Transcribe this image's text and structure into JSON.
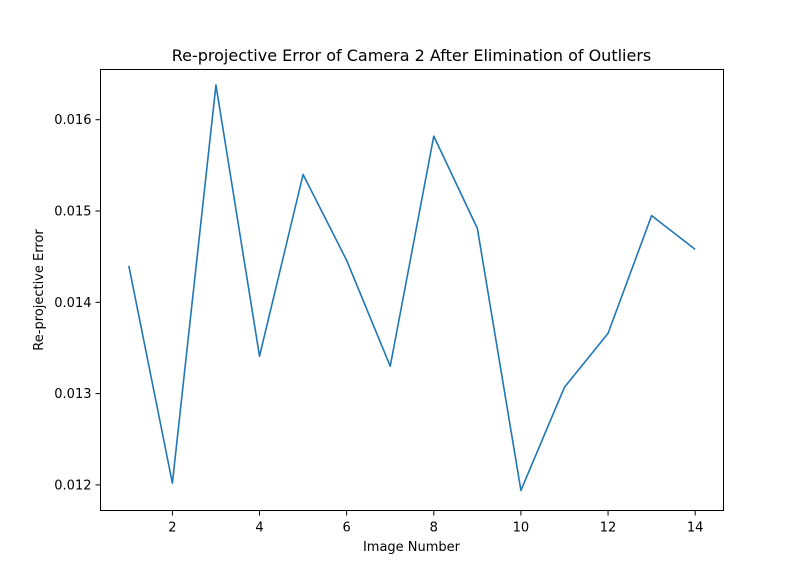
{
  "chart_data": {
    "type": "line",
    "title": "Re-projective Error of Camera 2 After Elimination of Outliers",
    "xlabel": "Image Number",
    "ylabel": "Re-projective Error",
    "xlim": [
      0.35,
      14.65
    ],
    "ylim": [
      0.01172,
      0.01655
    ],
    "xticks": [
      2,
      4,
      6,
      8,
      10,
      12,
      14
    ],
    "xtick_labels": [
      "2",
      "4",
      "6",
      "8",
      "10",
      "12",
      "14"
    ],
    "yticks": [
      0.012,
      0.013,
      0.014,
      0.015,
      0.016
    ],
    "ytick_labels": [
      "0.012",
      "0.013",
      "0.014",
      "0.015",
      "0.016"
    ],
    "grid": false,
    "legend": "none",
    "series": [
      {
        "color": "#1f77b4",
        "x": [
          1,
          2,
          3,
          4,
          5,
          6,
          7,
          8,
          9,
          10,
          11,
          12,
          13,
          14
        ],
        "y": [
          0.0144,
          0.01202,
          0.01638,
          0.01341,
          0.0154,
          0.01446,
          0.0133,
          0.01582,
          0.01481,
          0.01194,
          0.01307,
          0.01366,
          0.01495,
          0.01458
        ]
      }
    ]
  }
}
